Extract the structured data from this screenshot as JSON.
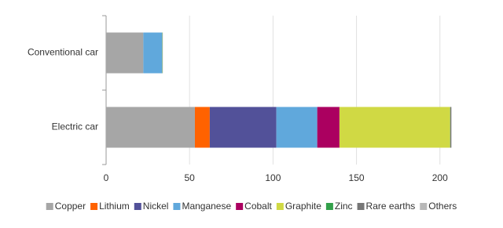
{
  "chart_data": {
    "type": "stacked-barh",
    "categories": [
      "Conventional car",
      "Electric car"
    ],
    "series": [
      {
        "name": "Copper",
        "color": "#a6a6a6",
        "values": [
          22.3,
          53.2
        ]
      },
      {
        "name": "Lithium",
        "color": "#ff6200",
        "values": [
          0,
          8.9
        ]
      },
      {
        "name": "Nickel",
        "color": "#525199",
        "values": [
          0,
          39.9
        ]
      },
      {
        "name": "Manganese",
        "color": "#60a8dc",
        "values": [
          11.2,
          24.5
        ]
      },
      {
        "name": "Cobalt",
        "color": "#ab0060",
        "values": [
          0,
          13.3
        ]
      },
      {
        "name": "Graphite",
        "color": "#d0d944",
        "values": [
          0,
          66.3
        ]
      },
      {
        "name": "Zinc",
        "color": "#33a04a",
        "values": [
          0.2,
          0.1
        ]
      },
      {
        "name": "Rare earths",
        "color": "#767676",
        "values": [
          0,
          0.5
        ]
      },
      {
        "name": "Others",
        "color": "#b8b8b8",
        "values": [
          0.3,
          0.3
        ]
      }
    ],
    "xlim": [
      0,
      210
    ],
    "xticks": [
      0,
      50,
      100,
      150,
      200
    ],
    "grid": true,
    "legend": "bottom"
  }
}
